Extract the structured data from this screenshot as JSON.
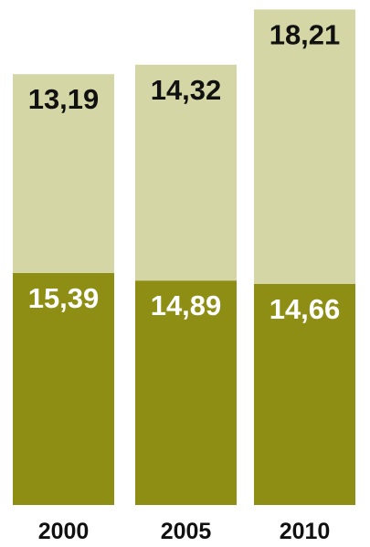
{
  "chart_data": {
    "type": "bar",
    "stacked": true,
    "categories": [
      "2000",
      "2005",
      "2010"
    ],
    "series": [
      {
        "values": [
          15.39,
          14.89,
          14.66
        ],
        "labels": [
          "15,39",
          "14,89",
          "14,66"
        ],
        "color": "#8f8e14",
        "label_color": "#ffffff"
      },
      {
        "values": [
          13.19,
          14.32,
          18.21
        ],
        "labels": [
          "13,19",
          "14,32",
          "18,21"
        ],
        "color": "#d4d6a6",
        "label_color": "#111111"
      }
    ],
    "ylim": [
      0,
      33.5
    ],
    "grid": false,
    "legend": "none"
  }
}
